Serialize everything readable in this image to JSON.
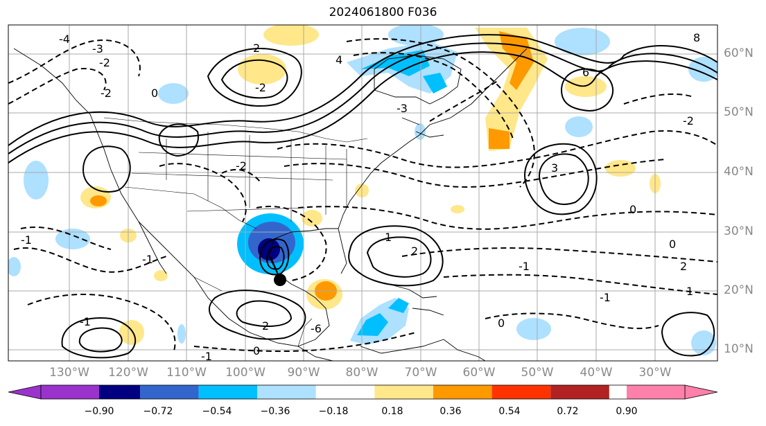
{
  "title": "2024061800 F036",
  "lat_labels": [
    "60°N",
    "50°N",
    "40°N",
    "30°N",
    "20°N",
    "10°N"
  ],
  "lon_labels": [
    "130°W",
    "120°W",
    "110°W",
    "100°W",
    "90°W",
    "80°W",
    "70°W",
    "60°W",
    "50°W",
    "40°W",
    "30°W"
  ],
  "colorbar": {
    "ticks": [
      "−0.90",
      "−0.72",
      "−0.54",
      "−0.36",
      "−0.18",
      "0.18",
      "0.36",
      "0.54",
      "0.72",
      "0.90"
    ],
    "colors": [
      "#9933cc",
      "#000080",
      "#3366cc",
      "#00bfff",
      "#aee0ff",
      "#ffffff",
      "#ffe78a",
      "#ff9900",
      "#ff3300",
      "#b22222",
      "#ff80aa"
    ]
  },
  "contour_labels": [
    "-4",
    "-3",
    "-2",
    "0",
    "2",
    "4",
    "6",
    "8",
    "-1",
    "1",
    "-2",
    "-6",
    "3",
    "-3",
    "0",
    "-1",
    "1",
    "2",
    "-1",
    "0",
    "-1",
    "2",
    "0",
    "-1",
    "-2",
    "2",
    "-2",
    "-1",
    "0",
    "-2"
  ],
  "marker": "storm-center"
}
